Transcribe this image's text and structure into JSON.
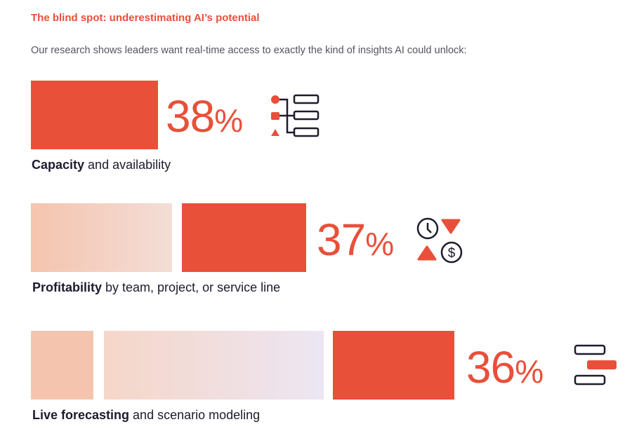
{
  "title": "The blind spot: underestimating AI’s potential",
  "subtitle": "Our research shows leaders want real-time access to exactly the kind of insights AI could unlock:",
  "colors": {
    "accent": "#e8503a",
    "text": "#1d1b2e",
    "faded_start": "#f5c4ae",
    "faded_end": "#ece6f3"
  },
  "items": [
    {
      "value": "38",
      "percent_sign": "%",
      "bold": "Capacity",
      "rest": " and availability",
      "icon": "org-hierarchy-icon"
    },
    {
      "value": "37",
      "percent_sign": "%",
      "bold": "Profitability",
      "rest": " by team, project, or service line",
      "icon": "time-money-icon"
    },
    {
      "value": "36",
      "percent_sign": "%",
      "bold": "Live forecasting",
      "rest": " and scenario modeling",
      "icon": "scenario-bars-icon"
    }
  ]
}
